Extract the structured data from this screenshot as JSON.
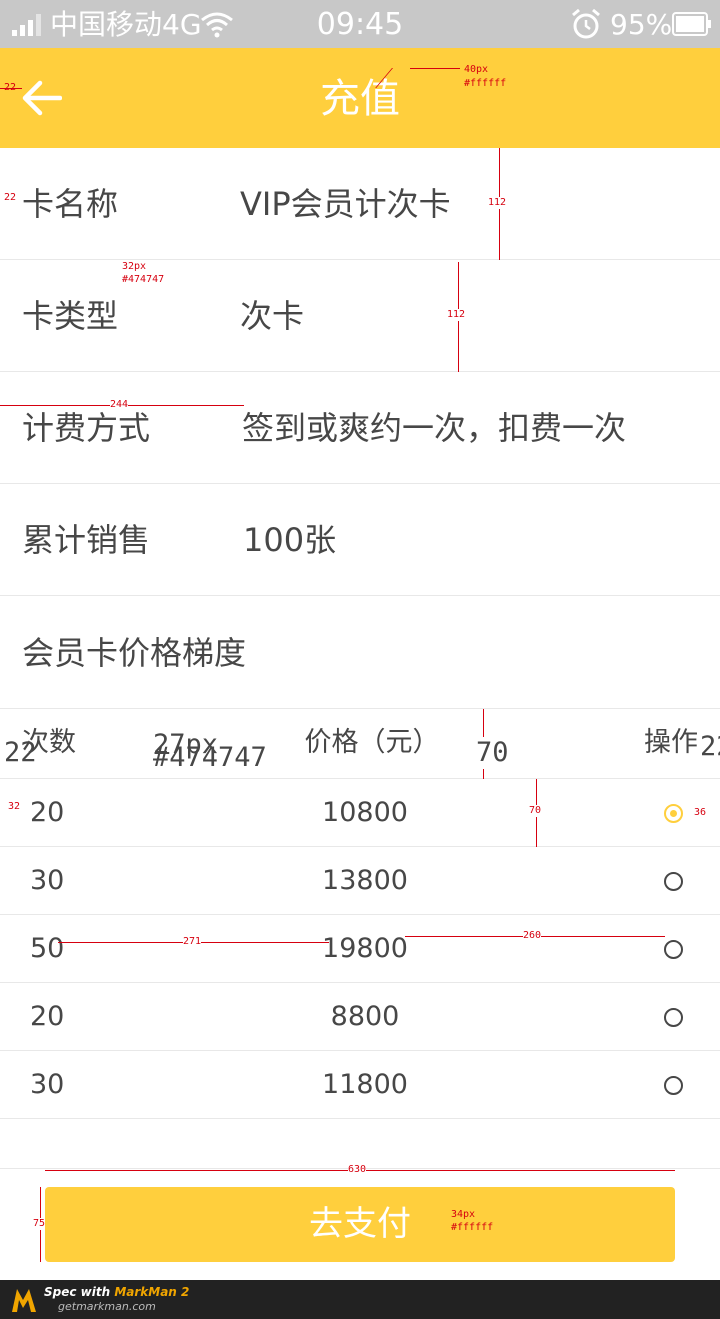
{
  "status_bar": {
    "carrier": "中国移动4G",
    "time": "09:45",
    "battery": "95%"
  },
  "header": {
    "title": "充值",
    "annotation_size": "40px",
    "annotation_color": "#ffffff"
  },
  "info": [
    {
      "label": "卡名称",
      "value": "VIP会员计次卡"
    },
    {
      "label": "卡类型",
      "value": "次卡"
    },
    {
      "label": "计费方式",
      "value": "签到或爽约一次，扣费一次"
    },
    {
      "label": "累计销售",
      "value": "100张"
    }
  ],
  "section_title": "会员卡价格梯度",
  "table": {
    "headers": {
      "count": "次数",
      "price": "价格（元）",
      "operation": "操作"
    },
    "rows": [
      {
        "count": "20",
        "price": "10800",
        "selected": true
      },
      {
        "count": "30",
        "price": "13800",
        "selected": false
      },
      {
        "count": "50",
        "price": "19800",
        "selected": false
      },
      {
        "count": "20",
        "price": "8800",
        "selected": false
      },
      {
        "count": "30",
        "price": "11800",
        "selected": false
      }
    ]
  },
  "pay_button": {
    "label": "去支付",
    "annotation_size": "34px",
    "annotation_color": "#ffffff"
  },
  "annotations": {
    "header_left_margin": "22",
    "row_left_margin": "22",
    "row_height_1": "112",
    "row_height_2": "112",
    "label_size": "32px",
    "label_color": "#474747",
    "label_width": "244",
    "table_label_size": "27px",
    "table_label_color": "#474747",
    "table_head_height": "70",
    "table_row_height": "70",
    "table_right_margin": "22",
    "table_left_margin": "22",
    "count_left_margin": "32",
    "radio_right_margin": "36",
    "count_to_price": "271",
    "price_to_radio": "260",
    "button_width": "630",
    "button_height": "75"
  },
  "footer": {
    "line1_prefix": "Spec with ",
    "line1_brand": "MarkMan 2",
    "line2": "getmarkman.com"
  },
  "colors": {
    "accent": "#ffcf3d",
    "text": "#474747",
    "annotation": "#d6000f"
  }
}
